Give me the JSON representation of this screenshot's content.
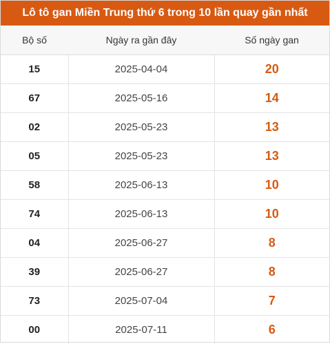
{
  "title": "Lô tô gan Miền Trung thứ 6 trong 10 lần quay gần nhất",
  "headers": {
    "number": "Bộ số",
    "last_date": "Ngày ra gần đây",
    "days": "Số ngày gan"
  },
  "accent_color": "#d85a12",
  "rows": [
    {
      "number": "15",
      "last_date": "2025-04-04",
      "days": "20"
    },
    {
      "number": "67",
      "last_date": "2025-05-16",
      "days": "14"
    },
    {
      "number": "02",
      "last_date": "2025-05-23",
      "days": "13"
    },
    {
      "number": "05",
      "last_date": "2025-05-23",
      "days": "13"
    },
    {
      "number": "58",
      "last_date": "2025-06-13",
      "days": "10"
    },
    {
      "number": "74",
      "last_date": "2025-06-13",
      "days": "10"
    },
    {
      "number": "04",
      "last_date": "2025-06-27",
      "days": "8"
    },
    {
      "number": "39",
      "last_date": "2025-06-27",
      "days": "8"
    },
    {
      "number": "73",
      "last_date": "2025-07-04",
      "days": "7"
    },
    {
      "number": "00",
      "last_date": "2025-07-11",
      "days": "6"
    }
  ]
}
